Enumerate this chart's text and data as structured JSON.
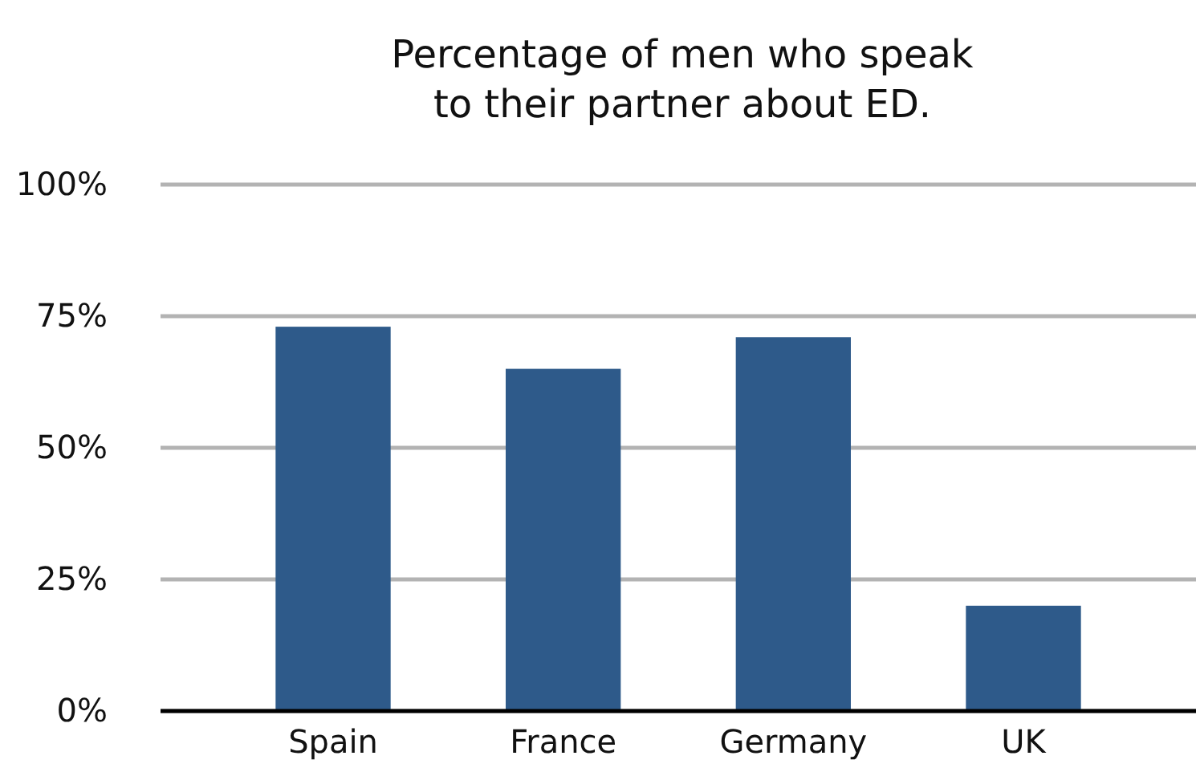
{
  "chart_data": {
    "type": "bar",
    "title": "Percentage of men who speak\nto their partner about ED.",
    "categories": [
      "Spain",
      "France",
      "Germany",
      "UK"
    ],
    "values": [
      73,
      65,
      71,
      20
    ],
    "color": "#2e5a8a",
    "ylim": [
      0,
      100
    ],
    "yticks": [
      {
        "value": 0,
        "label": "0%"
      },
      {
        "value": 25,
        "label": "25%"
      },
      {
        "value": 50,
        "label": "50%"
      },
      {
        "value": 75,
        "label": "75%"
      },
      {
        "value": 100,
        "label": "100%"
      }
    ],
    "grid": "y"
  }
}
